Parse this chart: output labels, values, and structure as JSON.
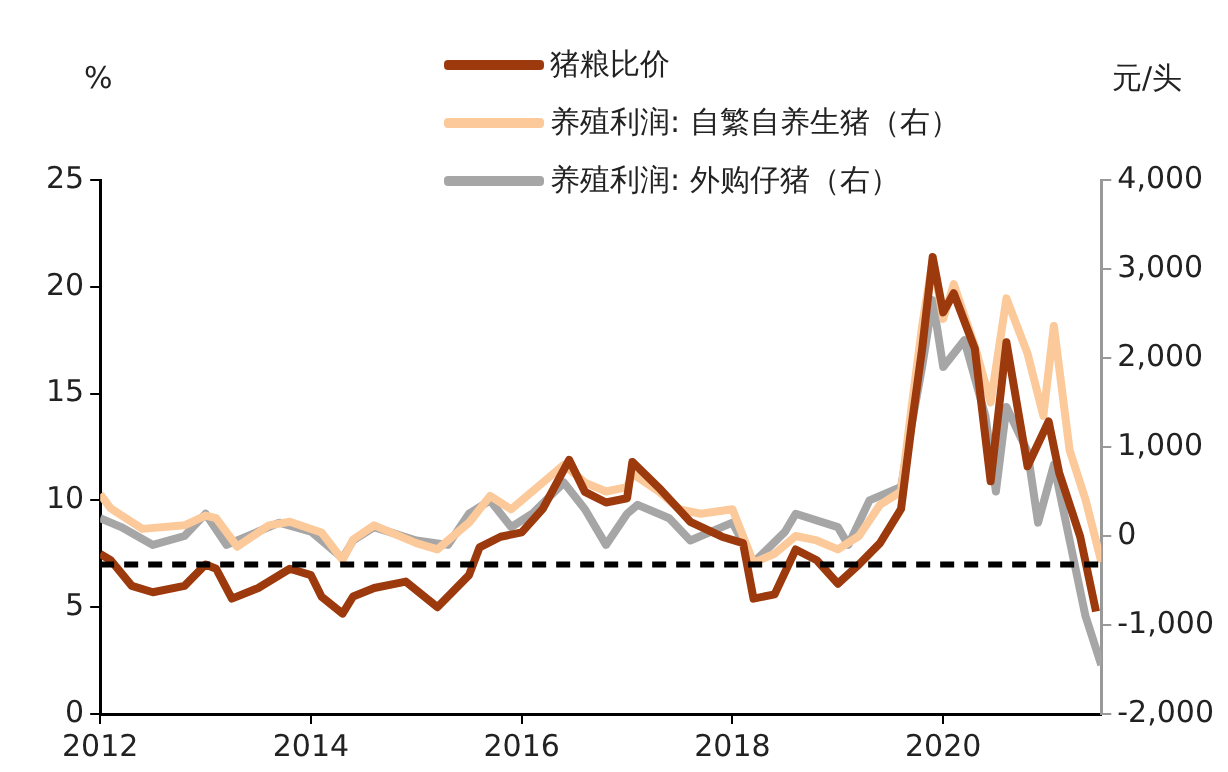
{
  "chart_data": {
    "type": "line",
    "ylabel": "%",
    "y2label": "元/头",
    "xlim": [
      2012,
      2021.5
    ],
    "xticks": [
      2012,
      2014,
      2016,
      2018,
      2020
    ],
    "ylim": [
      0,
      25
    ],
    "yticks": [
      0,
      5,
      10,
      15,
      20,
      25
    ],
    "y2lim": [
      -2000,
      4000
    ],
    "y2ticks": [
      {
        "value": -2000,
        "label": "-2,000"
      },
      {
        "value": -1000,
        "label": "-1,000"
      },
      0,
      {
        "value": 1000,
        "label": "1,000"
      },
      {
        "value": 2000,
        "label": "2,000"
      },
      {
        "value": 3000,
        "label": "3,000"
      },
      {
        "value": 4000,
        "label": "4,000"
      }
    ],
    "grid": false,
    "legend": "top",
    "marker": "none",
    "line_style": "solid",
    "ref_lines": [
      {
        "axis": "y",
        "value": 7,
        "color": "#000000",
        "line_style": "dashed"
      }
    ],
    "series": [
      {
        "name": "猪粮比价",
        "color": "#9c3a0e",
        "x": [
          2012.0,
          2012.1,
          2012.3,
          2012.5,
          2012.8,
          2013.0,
          2013.1,
          2013.25,
          2013.5,
          2013.8,
          2014.0,
          2014.1,
          2014.3,
          2014.4,
          2014.6,
          2014.9,
          2015.2,
          2015.5,
          2015.6,
          2015.8,
          2016.0,
          2016.2,
          2016.45,
          2016.6,
          2016.8,
          2017.0,
          2017.05,
          2017.3,
          2017.6,
          2017.9,
          2018.1,
          2018.2,
          2018.4,
          2018.6,
          2018.8,
          2019.0,
          2019.2,
          2019.4,
          2019.6,
          2019.7,
          2019.8,
          2019.9,
          2020.0,
          2020.1,
          2020.3,
          2020.45,
          2020.6,
          2020.8,
          2021.0,
          2021.1,
          2021.3,
          2021.45
        ],
        "values": [
          7.5,
          7.2,
          6.0,
          5.7,
          6.0,
          7.0,
          6.8,
          5.4,
          5.9,
          6.8,
          6.5,
          5.5,
          4.7,
          5.5,
          5.9,
          6.2,
          5.0,
          6.5,
          7.8,
          8.3,
          8.5,
          9.6,
          11.9,
          10.4,
          9.9,
          10.1,
          11.8,
          10.6,
          9.0,
          8.3,
          8.0,
          5.4,
          5.6,
          7.7,
          7.2,
          6.1,
          7.0,
          8.0,
          9.6,
          13.5,
          17.1,
          21.4,
          18.8,
          19.7,
          17.1,
          10.9,
          17.4,
          11.6,
          13.7,
          11.3,
          8.3,
          4.8
        ]
      },
      {
        "name": "养殖利润: 自繁自养生猪（右）",
        "color": "#fcc99a",
        "axis": "y2",
        "x": [
          2012.0,
          2012.1,
          2012.4,
          2012.8,
          2013.0,
          2013.1,
          2013.3,
          2013.6,
          2013.8,
          2014.1,
          2014.3,
          2014.4,
          2014.6,
          2015.0,
          2015.2,
          2015.5,
          2015.7,
          2015.9,
          2016.1,
          2016.4,
          2016.6,
          2016.8,
          2017.0,
          2017.05,
          2017.3,
          2017.5,
          2017.7,
          2018.0,
          2018.2,
          2018.4,
          2018.6,
          2018.8,
          2019.0,
          2019.2,
          2019.4,
          2019.6,
          2019.7,
          2019.8,
          2019.9,
          2020.0,
          2020.1,
          2020.3,
          2020.45,
          2020.6,
          2020.8,
          2020.95,
          2021.05,
          2021.2,
          2021.35,
          2021.5
        ],
        "values": [
          470,
          310,
          80,
          120,
          230,
          200,
          -120,
          120,
          160,
          40,
          -270,
          -40,
          120,
          -80,
          -150,
          150,
          450,
          300,
          500,
          800,
          600,
          500,
          550,
          700,
          500,
          300,
          250,
          300,
          -300,
          -200,
          0,
          -50,
          -150,
          0,
          350,
          500,
          1450,
          2360,
          3100,
          2440,
          2830,
          2130,
          1500,
          2670,
          2050,
          1350,
          2360,
          960,
          410,
          -290
        ]
      },
      {
        "name": "养殖利润: 外购仔猪（右）",
        "color": "#a6a6a6",
        "axis": "y2",
        "x": [
          2012.0,
          2012.2,
          2012.5,
          2012.8,
          2013.0,
          2013.2,
          2013.5,
          2013.7,
          2014.0,
          2014.3,
          2014.4,
          2014.6,
          2015.0,
          2015.3,
          2015.5,
          2015.7,
          2015.9,
          2016.1,
          2016.4,
          2016.6,
          2016.8,
          2017.0,
          2017.1,
          2017.4,
          2017.6,
          2018.0,
          2018.2,
          2018.5,
          2018.6,
          2019.0,
          2019.1,
          2019.3,
          2019.6,
          2019.7,
          2019.8,
          2019.9,
          2020.0,
          2020.2,
          2020.4,
          2020.5,
          2020.6,
          2020.8,
          2020.9,
          2021.05,
          2021.2,
          2021.35,
          2021.5
        ],
        "values": [
          200,
          100,
          -100,
          0,
          250,
          -100,
          50,
          150,
          50,
          -250,
          -50,
          100,
          -50,
          -100,
          250,
          400,
          100,
          250,
          600,
          300,
          -100,
          250,
          350,
          200,
          -50,
          150,
          -300,
          50,
          250,
          100,
          -100,
          400,
          550,
          1250,
          1900,
          2650,
          1900,
          2200,
          1350,
          500,
          1450,
          950,
          150,
          800,
          -50,
          -900,
          -1450
        ]
      }
    ]
  }
}
